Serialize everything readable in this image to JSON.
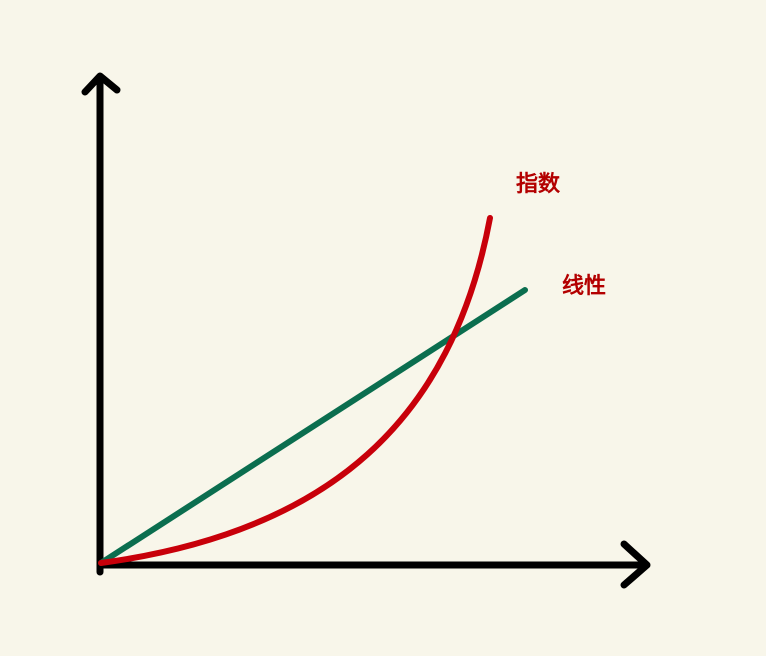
{
  "labels": {
    "exponential": "指数",
    "linear": "线性"
  }
}
